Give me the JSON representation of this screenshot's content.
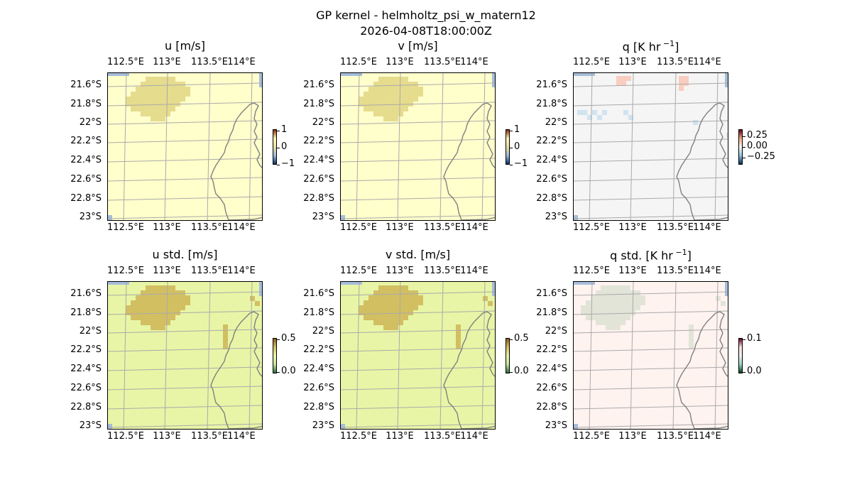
{
  "figure": {
    "title_line1": "GP kernel - helmholtz_psi_w_matern12",
    "title_line2": "2026-04-08T18:00:00Z"
  },
  "chart_data": [
    {
      "type": "heatmap",
      "title": "u [m/s]",
      "x_ticks": [
        "112.5°E",
        "113°E",
        "113.5°E",
        "114°E"
      ],
      "y_ticks": [
        "21.6°S",
        "21.8°S",
        "22°S",
        "22.2°S",
        "22.4°S",
        "22.6°S",
        "22.8°S",
        "23°S"
      ],
      "colorbar_ticks": [
        "1",
        "0",
        "−1"
      ],
      "base_color": "#ffffcc",
      "patch_color": "#e6dc8e",
      "grid": true
    },
    {
      "type": "heatmap",
      "title": "v [m/s]",
      "x_ticks": [
        "112.5°E",
        "113°E",
        "113.5°E",
        "114°E"
      ],
      "y_ticks": [
        "21.6°S",
        "21.8°S",
        "22°S",
        "22.2°S",
        "22.4°S",
        "22.6°S",
        "22.8°S",
        "23°S"
      ],
      "colorbar_ticks": [
        "1",
        "0",
        "−1"
      ],
      "base_color": "#ffffcc",
      "patch_color": "#e6dc8e",
      "grid": true
    },
    {
      "type": "heatmap",
      "title": "q [K hr",
      "title_sup": "−1",
      "title_end": "]",
      "x_ticks": [
        "112.5°E",
        "113°E",
        "113.5°E",
        "114°E"
      ],
      "y_ticks": [
        "21.6°S",
        "21.8°S",
        "22°S",
        "22.2°S",
        "22.4°S",
        "22.6°S",
        "22.8°S",
        "23°S"
      ],
      "colorbar_ticks": [
        "0.25",
        "0.00",
        "−0.25"
      ],
      "base_color": "#f5f5f5",
      "patch_color": "#fde0dd",
      "grid": true
    },
    {
      "type": "heatmap",
      "title": "u std. [m/s]",
      "x_ticks": [
        "112.5°E",
        "113°E",
        "113.5°E",
        "114°E"
      ],
      "y_ticks": [
        "21.6°S",
        "21.8°S",
        "22°S",
        "22.2°S",
        "22.4°S",
        "22.6°S",
        "22.8°S",
        "23°S"
      ],
      "colorbar_ticks": [
        "0.5",
        "0.0"
      ],
      "base_color": "#e8f5a6",
      "patch_color": "#d2bf62",
      "grid": true
    },
    {
      "type": "heatmap",
      "title": "v std. [m/s]",
      "x_ticks": [
        "112.5°E",
        "113°E",
        "113.5°E",
        "114°E"
      ],
      "y_ticks": [
        "21.6°S",
        "21.8°S",
        "22°S",
        "22.2°S",
        "22.4°S",
        "22.6°S",
        "22.8°S",
        "23°S"
      ],
      "colorbar_ticks": [
        "0.5",
        "0.0"
      ],
      "base_color": "#e8f5a6",
      "patch_color": "#d2bf62",
      "grid": true
    },
    {
      "type": "heatmap",
      "title": "q std. [K hr",
      "title_sup": "−1",
      "title_end": "]",
      "x_ticks": [
        "112.5°E",
        "113°E",
        "113.5°E",
        "114°E"
      ],
      "y_ticks": [
        "21.6°S",
        "21.8°S",
        "22°S",
        "22.2°S",
        "22.4°S",
        "22.6°S",
        "22.8°S",
        "23°S"
      ],
      "colorbar_ticks": [
        "0.1",
        "0.0"
      ],
      "base_color": "#fff3f0",
      "patch_color": "#e2e4d8",
      "grid": true
    }
  ]
}
